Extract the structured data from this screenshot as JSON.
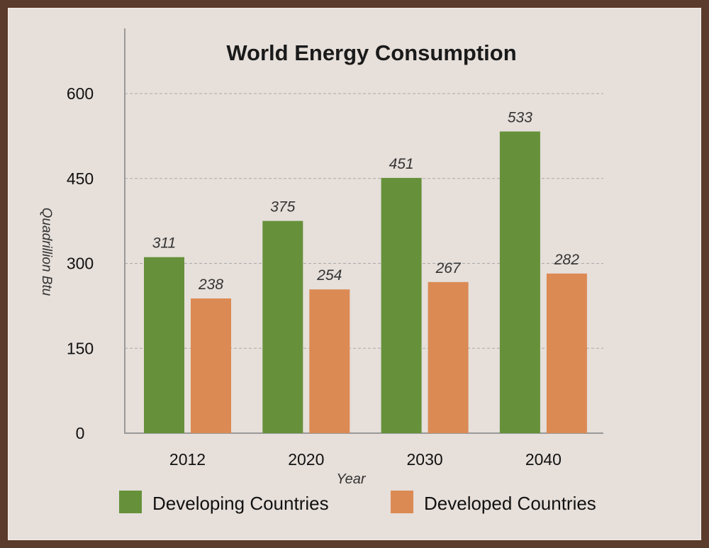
{
  "chart_data": {
    "type": "bar",
    "title": "World Energy Consumption",
    "xlabel": "Year",
    "ylabel": "Quadrillion Btu",
    "categories": [
      "2012",
      "2020",
      "2030",
      "2040"
    ],
    "series": [
      {
        "name": "Developing Countries",
        "values": [
          311,
          375,
          451,
          533
        ],
        "color": "#66913a"
      },
      {
        "name": "Developed Countries",
        "values": [
          238,
          254,
          267,
          282
        ],
        "color": "#dc8a54"
      }
    ],
    "yticks": [
      "0",
      "150",
      "300",
      "450",
      "600"
    ],
    "ylim": [
      0,
      600
    ],
    "grid": true,
    "legend": "bottom"
  }
}
